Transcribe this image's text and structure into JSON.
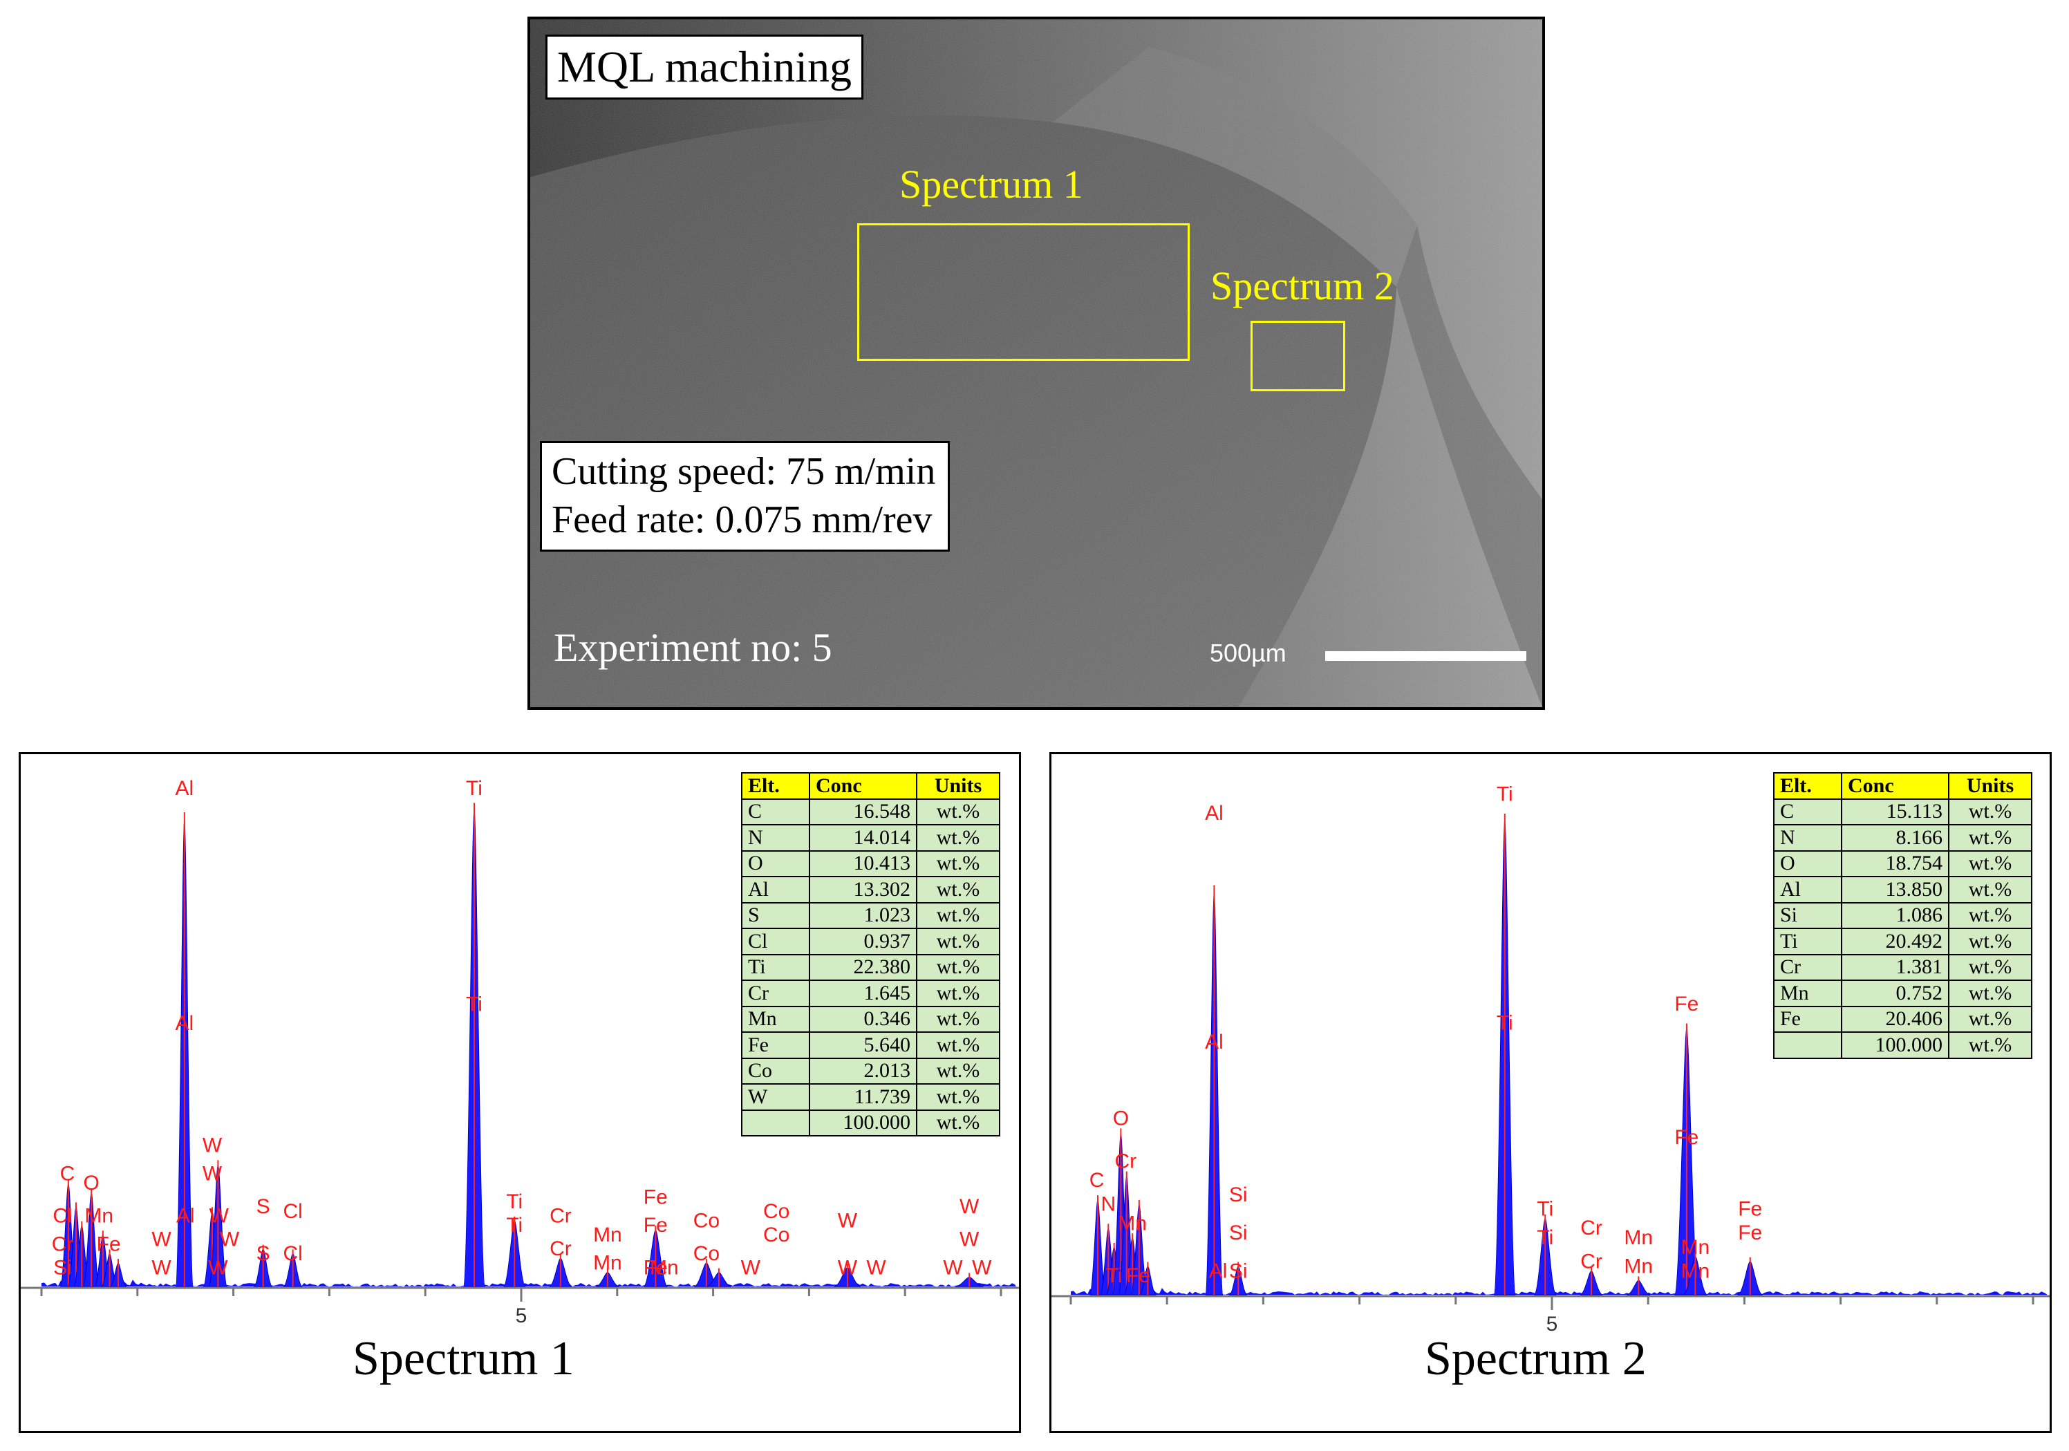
{
  "sem": {
    "title": "MQL machining",
    "cutting_speed": "Cutting speed: 75 m/min",
    "feed_rate": "Feed rate: 0.075 mm/rev",
    "experiment": "Experiment no: 5",
    "spectrum1_label": "Spectrum 1",
    "spectrum2_label": "Spectrum 2",
    "scale_label": "500µm"
  },
  "spectrum1": {
    "title": "Spectrum 1",
    "axis_tick": "5",
    "table": {
      "headers": [
        "Elt.",
        "Conc",
        "Units"
      ],
      "rows": [
        [
          "C",
          "16.548",
          "wt.%"
        ],
        [
          "N",
          "14.014",
          "wt.%"
        ],
        [
          "O",
          "10.413",
          "wt.%"
        ],
        [
          "Al",
          "13.302",
          "wt.%"
        ],
        [
          "S",
          "1.023",
          "wt.%"
        ],
        [
          "Cl",
          "0.937",
          "wt.%"
        ],
        [
          "Ti",
          "22.380",
          "wt.%"
        ],
        [
          "Cr",
          "1.645",
          "wt.%"
        ],
        [
          "Mn",
          "0.346",
          "wt.%"
        ],
        [
          "Fe",
          "5.640",
          "wt.%"
        ],
        [
          "Co",
          "2.013",
          "wt.%"
        ],
        [
          "W",
          "11.739",
          "wt.%"
        ],
        [
          "",
          "100.000",
          "wt.%"
        ]
      ]
    },
    "peaks": [
      {
        "keV": 0.28,
        "h": 0.22
      },
      {
        "keV": 0.36,
        "h": 0.17
      },
      {
        "keV": 0.42,
        "h": 0.13
      },
      {
        "keV": 0.52,
        "h": 0.2
      },
      {
        "keV": 0.64,
        "h": 0.11
      },
      {
        "keV": 0.71,
        "h": 0.07
      },
      {
        "keV": 0.8,
        "h": 0.05
      },
      {
        "keV": 1.49,
        "h": 1.0
      },
      {
        "keV": 1.78,
        "h": 0.16
      },
      {
        "keV": 1.84,
        "h": 0.26
      },
      {
        "keV": 2.31,
        "h": 0.08
      },
      {
        "keV": 2.62,
        "h": 0.07
      },
      {
        "keV": 4.51,
        "h": 1.02
      },
      {
        "keV": 4.93,
        "h": 0.14
      },
      {
        "keV": 5.41,
        "h": 0.06
      },
      {
        "keV": 5.9,
        "h": 0.03
      },
      {
        "keV": 6.4,
        "h": 0.12
      },
      {
        "keV": 6.93,
        "h": 0.05
      },
      {
        "keV": 7.06,
        "h": 0.03
      },
      {
        "keV": 8.4,
        "h": 0.04
      },
      {
        "keV": 9.67,
        "h": 0.02
      }
    ],
    "labels": [
      {
        "t": "Al",
        "keV": 1.49,
        "h": 1.04
      },
      {
        "t": "Al",
        "keV": 1.49,
        "h": 0.54
      },
      {
        "t": "Ti",
        "keV": 4.51,
        "h": 1.04
      },
      {
        "t": "Ti",
        "keV": 4.51,
        "h": 0.58
      },
      {
        "t": "C",
        "keV": 0.27,
        "h": 0.22
      },
      {
        "t": "O",
        "keV": 0.52,
        "h": 0.2
      },
      {
        "t": "W",
        "keV": 1.78,
        "h": 0.28
      },
      {
        "t": "W",
        "keV": 1.78,
        "h": 0.22
      },
      {
        "t": "S",
        "keV": 2.31,
        "h": 0.15
      },
      {
        "t": "Cl",
        "keV": 2.62,
        "h": 0.14
      },
      {
        "t": "Ti",
        "keV": 4.93,
        "h": 0.16
      },
      {
        "t": "Cr",
        "keV": 5.41,
        "h": 0.13
      },
      {
        "t": "Cr",
        "keV": 5.41,
        "h": 0.06
      },
      {
        "t": "Mn",
        "keV": 5.9,
        "h": 0.09
      },
      {
        "t": "Mn",
        "keV": 5.9,
        "h": 0.03
      },
      {
        "t": "Fe",
        "keV": 6.4,
        "h": 0.17
      },
      {
        "t": "Fe",
        "keV": 6.4,
        "h": 0.11
      },
      {
        "t": "Co",
        "keV": 6.93,
        "h": 0.12
      },
      {
        "t": "Co",
        "keV": 6.93,
        "h": 0.05
      },
      {
        "t": "Co",
        "keV": 7.66,
        "h": 0.14
      },
      {
        "t": "Co",
        "keV": 7.66,
        "h": 0.09
      },
      {
        "t": "W",
        "keV": 8.4,
        "h": 0.12
      },
      {
        "t": "W",
        "keV": 9.67,
        "h": 0.15
      },
      {
        "t": "W",
        "keV": 9.67,
        "h": 0.08
      },
      {
        "t": "Cl",
        "keV": 0.22,
        "h": 0.13
      },
      {
        "t": "Cr",
        "keV": 0.22,
        "h": 0.07
      },
      {
        "t": "Si",
        "keV": 0.22,
        "h": 0.02
      },
      {
        "t": "Mn",
        "keV": 0.6,
        "h": 0.13
      },
      {
        "t": "Fe",
        "keV": 0.7,
        "h": 0.07
      },
      {
        "t": "W",
        "keV": 1.25,
        "h": 0.08
      },
      {
        "t": "Al",
        "keV": 1.5,
        "h": 0.13
      },
      {
        "t": "W",
        "keV": 1.85,
        "h": 0.13
      },
      {
        "t": "W",
        "keV": 1.96,
        "h": 0.08
      },
      {
        "t": "S",
        "keV": 2.31,
        "h": 0.05
      },
      {
        "t": "Cl",
        "keV": 2.62,
        "h": 0.05
      },
      {
        "t": "Ti",
        "keV": 4.93,
        "h": 0.11
      },
      {
        "t": "Mn",
        "keV": 6.49,
        "h": 0.02
      },
      {
        "t": "W",
        "keV": 7.39,
        "h": 0.02
      },
      {
        "t": "W",
        "keV": 8.4,
        "h": 0.02
      },
      {
        "t": "W",
        "keV": 8.7,
        "h": 0.02
      },
      {
        "t": "W",
        "keV": 9.5,
        "h": 0.02
      },
      {
        "t": "W",
        "keV": 9.8,
        "h": 0.02
      },
      {
        "t": "Fe",
        "keV": 6.4,
        "h": 0.02
      },
      {
        "t": "W",
        "keV": 1.25,
        "h": 0.02
      },
      {
        "t": "W",
        "keV": 1.84,
        "h": 0.02
      }
    ]
  },
  "spectrum2": {
    "title": "Spectrum 2",
    "axis_tick": "5",
    "table": {
      "headers": [
        "Elt.",
        "Conc",
        "Units"
      ],
      "rows": [
        [
          "C",
          "15.113",
          "wt.%"
        ],
        [
          "N",
          "8.166",
          "wt.%"
        ],
        [
          "O",
          "18.754",
          "wt.%"
        ],
        [
          "Al",
          "13.850",
          "wt.%"
        ],
        [
          "Si",
          "1.086",
          "wt.%"
        ],
        [
          "Ti",
          "20.492",
          "wt.%"
        ],
        [
          "Cr",
          "1.381",
          "wt.%"
        ],
        [
          "Mn",
          "0.752",
          "wt.%"
        ],
        [
          "Fe",
          "20.406",
          "wt.%"
        ],
        [
          "",
          "100.000",
          "wt.%"
        ]
      ]
    },
    "peaks": [
      {
        "keV": 0.28,
        "h": 0.2
      },
      {
        "keV": 0.39,
        "h": 0.14
      },
      {
        "keV": 0.45,
        "h": 0.1
      },
      {
        "keV": 0.52,
        "h": 0.34
      },
      {
        "keV": 0.58,
        "h": 0.25
      },
      {
        "keV": 0.64,
        "h": 0.12
      },
      {
        "keV": 0.71,
        "h": 0.19
      },
      {
        "keV": 0.8,
        "h": 0.06
      },
      {
        "keV": 1.49,
        "h": 0.85
      },
      {
        "keV": 1.74,
        "h": 0.06
      },
      {
        "keV": 4.51,
        "h": 1.0
      },
      {
        "keV": 4.93,
        "h": 0.16
      },
      {
        "keV": 5.41,
        "h": 0.05
      },
      {
        "keV": 5.9,
        "h": 0.03
      },
      {
        "keV": 6.4,
        "h": 0.56
      },
      {
        "keV": 6.49,
        "h": 0.08
      },
      {
        "keV": 7.06,
        "h": 0.07
      }
    ],
    "labels": [
      {
        "t": "Al",
        "keV": 1.49,
        "h": 0.99
      },
      {
        "t": "Al",
        "keV": 1.49,
        "h": 0.51
      },
      {
        "t": "Ti",
        "keV": 4.51,
        "h": 1.03
      },
      {
        "t": "Ti",
        "keV": 4.51,
        "h": 0.55
      },
      {
        "t": "Fe",
        "keV": 6.4,
        "h": 0.59
      },
      {
        "t": "Fe",
        "keV": 6.4,
        "h": 0.31
      },
      {
        "t": "O",
        "keV": 0.52,
        "h": 0.35
      },
      {
        "t": "Cr",
        "keV": 0.57,
        "h": 0.26
      },
      {
        "t": "C",
        "keV": 0.27,
        "h": 0.22
      },
      {
        "t": "N",
        "keV": 0.39,
        "h": 0.17
      },
      {
        "t": "Mn",
        "keV": 0.64,
        "h": 0.13
      },
      {
        "t": "Si",
        "keV": 1.74,
        "h": 0.19
      },
      {
        "t": "Si",
        "keV": 1.74,
        "h": 0.11
      },
      {
        "t": "Ti",
        "keV": 4.93,
        "h": 0.16
      },
      {
        "t": "Ti",
        "keV": 4.93,
        "h": 0.1
      },
      {
        "t": "Cr",
        "keV": 5.41,
        "h": 0.12
      },
      {
        "t": "Cr",
        "keV": 5.41,
        "h": 0.05
      },
      {
        "t": "Mn",
        "keV": 5.9,
        "h": 0.1
      },
      {
        "t": "Mn",
        "keV": 5.9,
        "h": 0.04
      },
      {
        "t": "Mn",
        "keV": 6.49,
        "h": 0.08
      },
      {
        "t": "Mn",
        "keV": 6.49,
        "h": 0.03
      },
      {
        "t": "Fe",
        "keV": 7.06,
        "h": 0.16
      },
      {
        "t": "Fe",
        "keV": 7.06,
        "h": 0.11
      },
      {
        "t": "Al",
        "keV": 1.53,
        "h": 0.03
      },
      {
        "t": "Si",
        "keV": 1.74,
        "h": 0.03
      },
      {
        "t": "Ti",
        "keV": 0.45,
        "h": 0.02
      },
      {
        "t": "Fe",
        "keV": 0.7,
        "h": 0.02
      }
    ]
  }
}
